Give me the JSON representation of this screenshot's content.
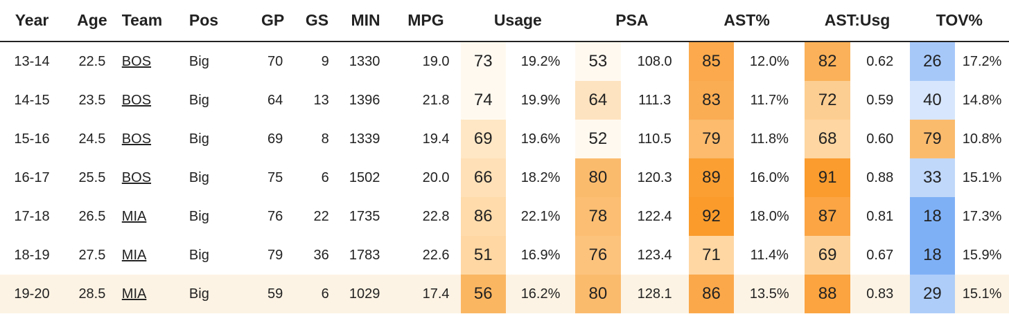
{
  "headers": {
    "year": "Year",
    "age": "Age",
    "team": "Team",
    "pos": "Pos",
    "gp": "GP",
    "gs": "GS",
    "min": "MIN",
    "mpg": "MPG",
    "usage": "Usage",
    "psa": "PSA",
    "ast": "AST%",
    "astusg": "AST:Usg",
    "tov": "TOV%"
  },
  "rows": [
    {
      "year": "13-14",
      "age": "22.5",
      "team": "BOS",
      "pos": "Big",
      "gp": "70",
      "gs": "9",
      "min": "1330",
      "mpg": "19.0",
      "usg_pct": "73",
      "usg": "19.2%",
      "psa_pct": "53",
      "psa": "108.0",
      "ast_pct": "85",
      "ast": "12.0%",
      "astusg_pct": "82",
      "astusg": "0.62",
      "tov_pct": "26",
      "tov": "17.2%"
    },
    {
      "year": "14-15",
      "age": "23.5",
      "team": "BOS",
      "pos": "Big",
      "gp": "64",
      "gs": "13",
      "min": "1396",
      "mpg": "21.8",
      "usg_pct": "74",
      "usg": "19.9%",
      "psa_pct": "64",
      "psa": "111.3",
      "ast_pct": "83",
      "ast": "11.7%",
      "astusg_pct": "72",
      "astusg": "0.59",
      "tov_pct": "40",
      "tov": "14.8%"
    },
    {
      "year": "15-16",
      "age": "24.5",
      "team": "BOS",
      "pos": "Big",
      "gp": "69",
      "gs": "8",
      "min": "1339",
      "mpg": "19.4",
      "usg_pct": "69",
      "usg": "19.6%",
      "psa_pct": "52",
      "psa": "110.5",
      "ast_pct": "79",
      "ast": "11.8%",
      "astusg_pct": "68",
      "astusg": "0.60",
      "tov_pct": "79",
      "tov": "10.8%"
    },
    {
      "year": "16-17",
      "age": "25.5",
      "team": "BOS",
      "pos": "Big",
      "gp": "75",
      "gs": "6",
      "min": "1502",
      "mpg": "20.0",
      "usg_pct": "66",
      "usg": "18.2%",
      "psa_pct": "80",
      "psa": "120.3",
      "ast_pct": "89",
      "ast": "16.0%",
      "astusg_pct": "91",
      "astusg": "0.88",
      "tov_pct": "33",
      "tov": "15.1%"
    },
    {
      "year": "17-18",
      "age": "26.5",
      "team": "MIA",
      "pos": "Big",
      "gp": "76",
      "gs": "22",
      "min": "1735",
      "mpg": "22.8",
      "usg_pct": "86",
      "usg": "22.1%",
      "psa_pct": "78",
      "psa": "122.4",
      "ast_pct": "92",
      "ast": "18.0%",
      "astusg_pct": "87",
      "astusg": "0.81",
      "tov_pct": "18",
      "tov": "17.3%"
    },
    {
      "year": "18-19",
      "age": "27.5",
      "team": "MIA",
      "pos": "Big",
      "gp": "79",
      "gs": "36",
      "min": "1783",
      "mpg": "22.6",
      "usg_pct": "51",
      "usg": "16.9%",
      "psa_pct": "76",
      "psa": "123.4",
      "ast_pct": "71",
      "ast": "11.4%",
      "astusg_pct": "69",
      "astusg": "0.67",
      "tov_pct": "18",
      "tov": "15.9%"
    },
    {
      "year": "19-20",
      "age": "28.5",
      "team": "MIA",
      "pos": "Big",
      "gp": "59",
      "gs": "6",
      "min": "1029",
      "mpg": "17.4",
      "usg_pct": "56",
      "usg": "16.2%",
      "psa_pct": "80",
      "psa": "128.1",
      "ast_pct": "86",
      "ast": "13.5%",
      "astusg_pct": "88",
      "astusg": "0.83",
      "tov_pct": "29",
      "tov": "15.1%"
    }
  ],
  "colors": {
    "usg_pct": [
      "#fff9f0",
      "#fff9f0",
      "#ffe7c5",
      "#ffe0b7",
      "#ffdbab",
      "#ffd7a3",
      "#fbb661"
    ],
    "psa_pct": [
      "#fff9f0",
      "#fee3c0",
      "#fff9f0",
      "#fbbb6d",
      "#fcbe72",
      "#fcc37d",
      "#fbbb6d"
    ],
    "ast_pct": [
      "#fba94c",
      "#fbad53",
      "#fcbb6d",
      "#fb9f33",
      "#fa9b2b",
      "#ffd7a3",
      "#fba84a"
    ],
    "astusg_pct": [
      "#fbb159",
      "#fdce91",
      "#fdd6a1",
      "#fa9c2e",
      "#fba544",
      "#fdd39b",
      "#fba440"
    ],
    "tov_pct": [
      "#a6c8f9",
      "#d7e6fc",
      "#fbbb6d",
      "#c0d8fa",
      "#7eb0f6",
      "#7eb0f6",
      "#aecdf9"
    ]
  }
}
